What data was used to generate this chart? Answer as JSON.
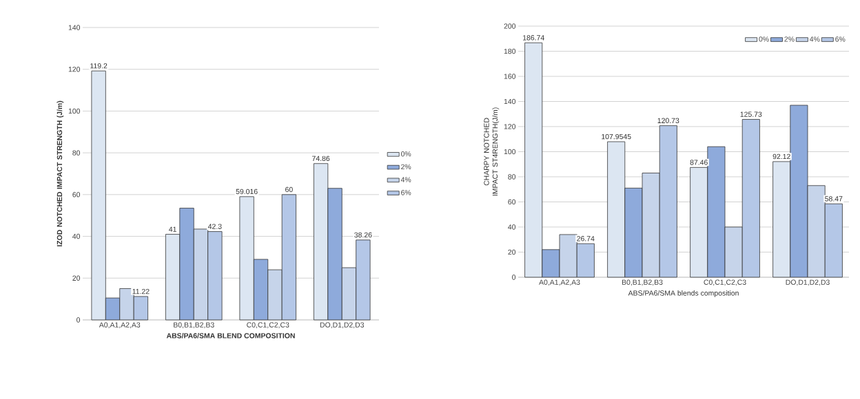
{
  "chart_data": [
    {
      "type": "bar",
      "ylabel": "**IZOD NOTCHED IMPACT STRENGTH (J/m)**",
      "xlabel": "**ABS/PA6/SMA BLEND COMPOSITION**",
      "categories": [
        "A0,A1,A2,A3",
        "B0,B1,B2,B3",
        "C0,C1,C2,C3",
        "DO,D1,D2,D3"
      ],
      "ylim": [
        0,
        140
      ],
      "yticks": [
        0,
        20,
        40,
        60,
        80,
        100,
        120,
        140
      ],
      "grid": "y",
      "legend": "right",
      "series": [
        {
          "name": "0%",
          "color": "#dce6f2",
          "values": [
            119.2,
            41,
            59.016,
            74.86
          ],
          "value_labels": [
            "119.2",
            "41",
            "59.016",
            "74.86"
          ]
        },
        {
          "name": "2%",
          "color": "#8eaadb",
          "values": [
            10.5,
            53.5,
            29,
            63
          ],
          "value_labels": [
            null,
            null,
            null,
            null
          ]
        },
        {
          "name": "4%",
          "color": "#c6d4ea",
          "values": [
            15,
            43.5,
            24,
            25
          ],
          "value_labels": [
            null,
            null,
            null,
            null
          ]
        },
        {
          "name": "6%",
          "color": "#b4c7e7",
          "values": [
            11.22,
            42.3,
            60,
            38.26
          ],
          "value_labels": [
            "11.22",
            "42.3",
            "60",
            "38.26"
          ]
        }
      ]
    },
    {
      "type": "bar",
      "ylabel": "CHARPY NOTCHED IMPACT ST4RENGTH(J/m)",
      "xlabel": "ABS/PA6/SMA blends composition",
      "categories": [
        "A0,A1,A2,A3",
        "B0,B1,B2,B3",
        "C0,C1,C2,C3",
        "DO,D1,D2,D3"
      ],
      "ylim": [
        0,
        200
      ],
      "yticks": [
        0,
        20,
        40,
        60,
        80,
        100,
        120,
        140,
        160,
        180,
        200
      ],
      "grid": "y",
      "legend": "top right",
      "series": [
        {
          "name": "0%",
          "color": "#dce6f2",
          "values": [
            186.74,
            107.9545,
            87.46,
            92.12
          ],
          "value_labels": [
            "186.74",
            "107.9545",
            "87.46",
            "92.12"
          ]
        },
        {
          "name": "2%",
          "color": "#8eaadb",
          "values": [
            22,
            71,
            104,
            137
          ],
          "value_labels": [
            null,
            null,
            null,
            null
          ]
        },
        {
          "name": "4%",
          "color": "#c6d4ea",
          "values": [
            34,
            83,
            40,
            73
          ],
          "value_labels": [
            null,
            null,
            null,
            null
          ]
        },
        {
          "name": "6%",
          "color": "#b4c7e7",
          "values": [
            26.74,
            120.73,
            125.73,
            58.47
          ],
          "value_labels": [
            "26.74",
            "120.73",
            "125.73",
            "58.47"
          ]
        }
      ]
    }
  ]
}
